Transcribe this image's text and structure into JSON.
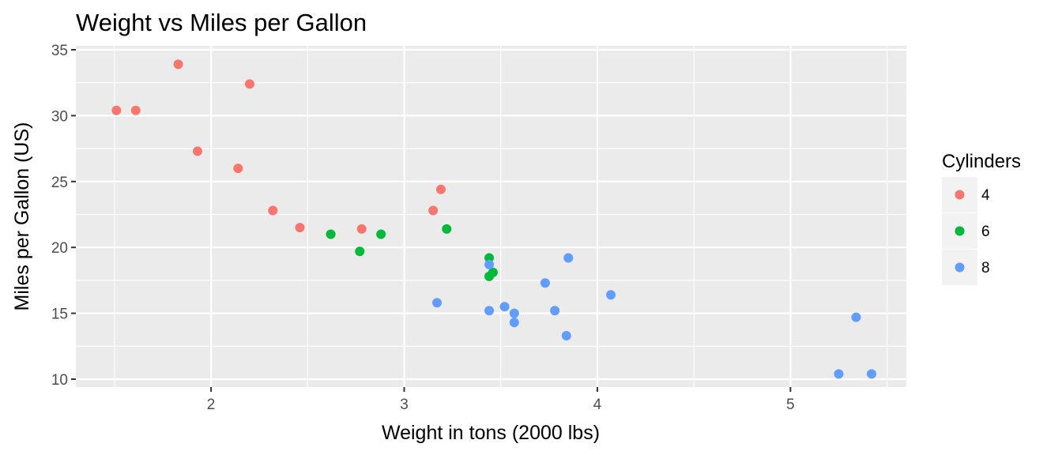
{
  "chart_data": {
    "type": "scatter",
    "title": "Weight vs Miles per Gallon",
    "xlabel": "Weight in tons (2000 lbs)",
    "ylabel": "Miles per Gallon (US)",
    "xlim": [
      1.3,
      5.6
    ],
    "ylim": [
      9.4,
      35.3
    ],
    "x_ticks": [
      2,
      3,
      4,
      5
    ],
    "y_ticks": [
      10,
      15,
      20,
      25,
      30,
      35
    ],
    "x_tick_labels": [
      "2",
      "3",
      "4",
      "5"
    ],
    "y_tick_labels": [
      "10",
      "15",
      "20",
      "25",
      "30",
      "35"
    ],
    "grid": true,
    "legend": {
      "title": "Cylinders",
      "placement": "right"
    },
    "series": [
      {
        "name": "4",
        "color": "#F8766D",
        "points": [
          [
            1.51,
            30.4
          ],
          [
            1.61,
            30.4
          ],
          [
            1.83,
            33.9
          ],
          [
            1.93,
            27.3
          ],
          [
            2.14,
            26.0
          ],
          [
            2.2,
            32.4
          ],
          [
            2.32,
            22.8
          ],
          [
            2.46,
            21.5
          ],
          [
            2.78,
            21.4
          ],
          [
            3.15,
            22.8
          ],
          [
            3.19,
            24.4
          ]
        ]
      },
      {
        "name": "6",
        "color": "#00BA38",
        "points": [
          [
            2.62,
            21.0
          ],
          [
            2.77,
            19.7
          ],
          [
            2.88,
            21.0
          ],
          [
            3.22,
            21.4
          ],
          [
            3.44,
            19.2
          ],
          [
            3.44,
            17.8
          ],
          [
            3.46,
            18.1
          ]
        ]
      },
      {
        "name": "8",
        "color": "#619CFF",
        "points": [
          [
            3.17,
            15.8
          ],
          [
            3.44,
            18.7
          ],
          [
            3.44,
            15.2
          ],
          [
            3.52,
            15.5
          ],
          [
            3.57,
            15.0
          ],
          [
            3.57,
            14.3
          ],
          [
            3.73,
            17.3
          ],
          [
            3.78,
            15.2
          ],
          [
            3.84,
            13.3
          ],
          [
            3.85,
            19.2
          ],
          [
            4.07,
            16.4
          ],
          [
            5.25,
            10.4
          ],
          [
            5.34,
            14.7
          ],
          [
            5.42,
            10.4
          ]
        ]
      }
    ]
  },
  "colors": {
    "panel_background": "#EBEBEB",
    "grid_major": "#FFFFFF",
    "legend_key_background": "#F2F2F2"
  }
}
